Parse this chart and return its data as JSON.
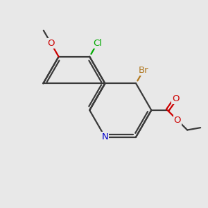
{
  "background_color": "#e8e8e8",
  "bond_color": "#3a3a3a",
  "bond_width": 1.6,
  "atom_colors": {
    "Br": "#b07820",
    "Cl": "#00aa00",
    "N": "#0000cc",
    "O": "#cc0000",
    "C": "#3a3a3a"
  },
  "font_size": 9.5,
  "font_size_small": 8.0
}
